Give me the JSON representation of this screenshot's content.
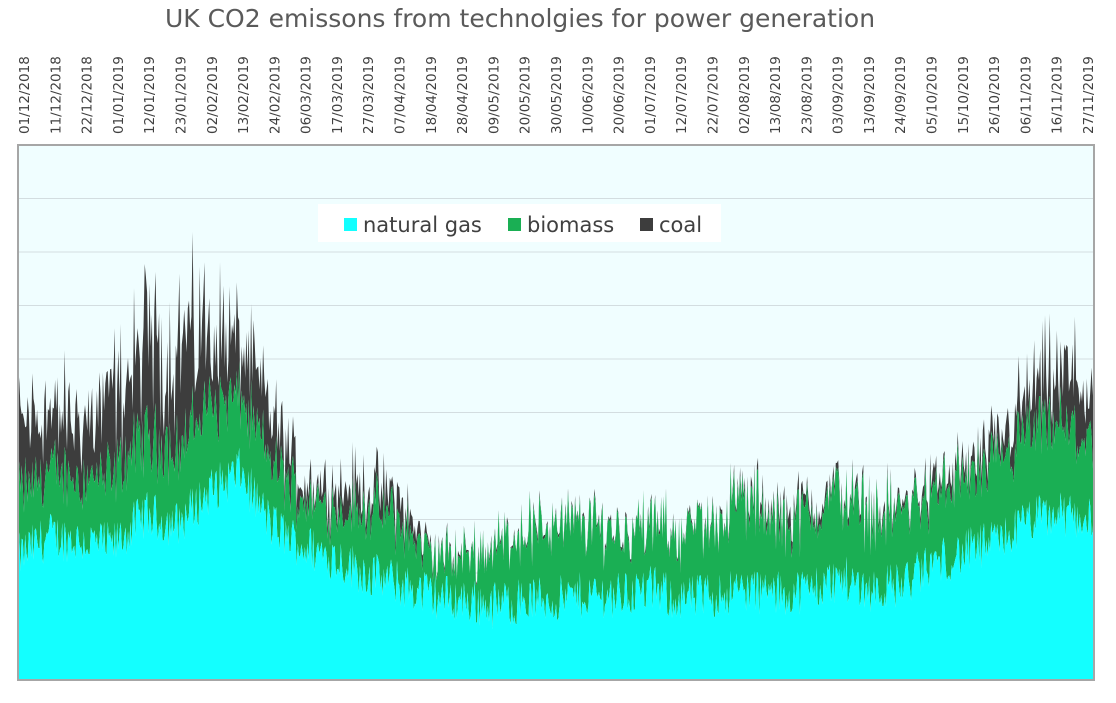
{
  "chart_data": {
    "type": "area",
    "title": "UK  CO2 emissons from technolgies for power generation",
    "stacked": true,
    "grid": true,
    "legend_position": "top-center",
    "x_ticks": [
      "01/12/2018",
      "11/12/2018",
      "22/12/2018",
      "01/01/2019",
      "12/01/2019",
      "23/01/2019",
      "02/02/2019",
      "13/02/2019",
      "24/02/2019",
      "06/03/2019",
      "17/03/2019",
      "27/03/2019",
      "07/04/2019",
      "18/04/2019",
      "28/04/2019",
      "09/05/2019",
      "20/05/2019",
      "30/05/2019",
      "10/06/2019",
      "20/06/2019",
      "01/07/2019",
      "12/07/2019",
      "22/07/2019",
      "02/08/2019",
      "13/08/2019",
      "23/08/2019",
      "03/09/2019",
      "13/09/2019",
      "24/09/2019",
      "05/10/2019",
      "15/10/2019",
      "26/10/2019",
      "06/11/2019",
      "16/11/2019",
      "27/11/2019"
    ],
    "y_range": [
      0,
      10
    ],
    "series": [
      {
        "name": "natural gas",
        "color": "#13FFFF",
        "values": [
          2.3,
          2.7,
          2.6,
          2.5,
          3.1,
          2.9,
          3.5,
          3.9,
          2.9,
          2.5,
          2.3,
          2.0,
          1.8,
          1.6,
          1.5,
          1.4,
          1.5,
          1.5,
          1.6,
          1.6,
          1.7,
          1.5,
          1.6,
          1.7,
          1.6,
          1.7,
          1.9,
          1.7,
          1.8,
          2.2,
          2.4,
          2.6,
          3.0,
          3.1,
          3.0
        ]
      },
      {
        "name": "biomass",
        "color": "#1AAF54",
        "values": [
          1.2,
          1.2,
          1.2,
          1.3,
          1.5,
          1.4,
          1.6,
          1.4,
          1.2,
          0.9,
          0.9,
          1.2,
          1.2,
          0.7,
          0.8,
          1.1,
          1.3,
          1.4,
          1.3,
          1.2,
          1.2,
          1.2,
          1.4,
          1.7,
          1.3,
          1.4,
          1.6,
          1.4,
          1.4,
          1.3,
          1.4,
          1.4,
          1.6,
          1.6,
          1.5
        ]
      },
      {
        "name": "coal",
        "color": "#3D3D3D",
        "values": [
          1.2,
          1.1,
          0.9,
          1.4,
          1.6,
          1.8,
          1.5,
          1.0,
          0.8,
          0.3,
          0.4,
          0.4,
          0.4,
          0.1,
          0.05,
          0.05,
          0.05,
          0.05,
          0.05,
          0.05,
          0.05,
          0.05,
          0.05,
          0.1,
          0.2,
          0.2,
          0.1,
          0.1,
          0.1,
          0.2,
          0.2,
          0.4,
          0.8,
          1.0,
          0.8
        ]
      }
    ]
  }
}
